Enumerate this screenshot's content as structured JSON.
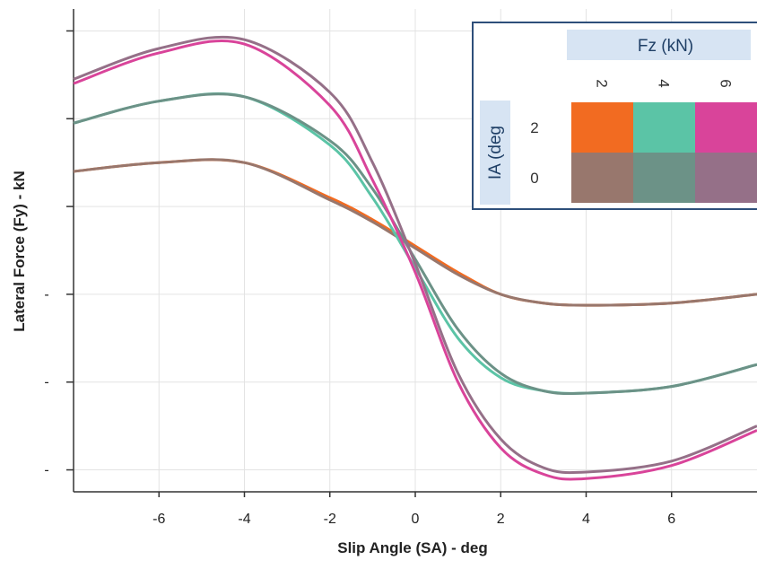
{
  "chart_data": {
    "type": "line",
    "xlabel": "Slip Angle (SA) - deg",
    "ylabel": "Lateral Force (Fy) - kN",
    "xlim": [
      -8,
      8
    ],
    "ylim": [
      -5.5,
      5.5
    ],
    "x_ticks": [
      -6,
      -4,
      -2,
      0,
      2,
      4,
      6
    ],
    "x_tick_labels": [
      "-6",
      "-4",
      "-2",
      "0",
      "2",
      "4",
      "6"
    ],
    "y_ticks": [
      -5,
      -3,
      -1,
      1,
      3,
      5
    ],
    "y_tick_labels": [
      "-",
      "-",
      "-",
      "",
      "",
      ""
    ],
    "grid": true,
    "legend": {
      "placement": "top-right",
      "col_title": "Fz (kN)",
      "row_title": "IA (deg",
      "col_labels": [
        "2",
        "4",
        "6"
      ],
      "row_labels": [
        "2",
        "0"
      ],
      "colors": [
        [
          "#f26b21",
          "#5bc4a6",
          "#d9449a"
        ],
        [
          "#98776d",
          "#6c9287",
          "#957088"
        ]
      ]
    },
    "series": [
      {
        "fz": "2",
        "ia": "2",
        "color": "#f26b21",
        "x": [
          -8,
          -6,
          -4,
          -2,
          -1,
          0,
          1,
          2,
          3,
          4,
          6,
          8
        ],
        "y": [
          1.8,
          2.0,
          2.0,
          1.2,
          0.7,
          0.1,
          -0.5,
          -1.0,
          -1.2,
          -1.25,
          -1.2,
          -1.0
        ]
      },
      {
        "fz": "2",
        "ia": "0",
        "color": "#98776d",
        "x": [
          -8,
          -6,
          -4,
          -2,
          -1,
          0,
          1,
          2,
          3,
          4,
          6,
          8
        ],
        "y": [
          1.8,
          2.0,
          2.0,
          1.15,
          0.65,
          0.05,
          -0.55,
          -1.0,
          -1.2,
          -1.25,
          -1.2,
          -1.0
        ]
      },
      {
        "fz": "4",
        "ia": "2",
        "color": "#5bc4a6",
        "x": [
          -8,
          -6,
          -4,
          -2,
          -1,
          0,
          1,
          2,
          3,
          4,
          6,
          8
        ],
        "y": [
          2.9,
          3.4,
          3.5,
          2.4,
          1.2,
          -0.4,
          -2.0,
          -2.9,
          -3.2,
          -3.25,
          -3.1,
          -2.6
        ]
      },
      {
        "fz": "4",
        "ia": "0",
        "color": "#6c9287",
        "x": [
          -8,
          -6,
          -4,
          -2,
          -1,
          0,
          1,
          2,
          3,
          4,
          6,
          8
        ],
        "y": [
          2.9,
          3.4,
          3.5,
          2.5,
          1.4,
          -0.2,
          -1.8,
          -2.8,
          -3.2,
          -3.25,
          -3.1,
          -2.6
        ]
      },
      {
        "fz": "6",
        "ia": "2",
        "color": "#d9449a",
        "x": [
          -8,
          -6,
          -4,
          -2,
          -1,
          0,
          1,
          2,
          3,
          4,
          6,
          8
        ],
        "y": [
          3.8,
          4.5,
          4.7,
          3.3,
          1.6,
          -0.5,
          -3.0,
          -4.5,
          -5.1,
          -5.2,
          -4.9,
          -4.1
        ]
      },
      {
        "fz": "6",
        "ia": "0",
        "color": "#957088",
        "x": [
          -8,
          -6,
          -4,
          -2,
          -1,
          0,
          1,
          2,
          3,
          4,
          6,
          8
        ],
        "y": [
          3.9,
          4.6,
          4.8,
          3.6,
          2.0,
          -0.3,
          -2.8,
          -4.3,
          -4.95,
          -5.05,
          -4.8,
          -4.0
        ]
      }
    ]
  }
}
